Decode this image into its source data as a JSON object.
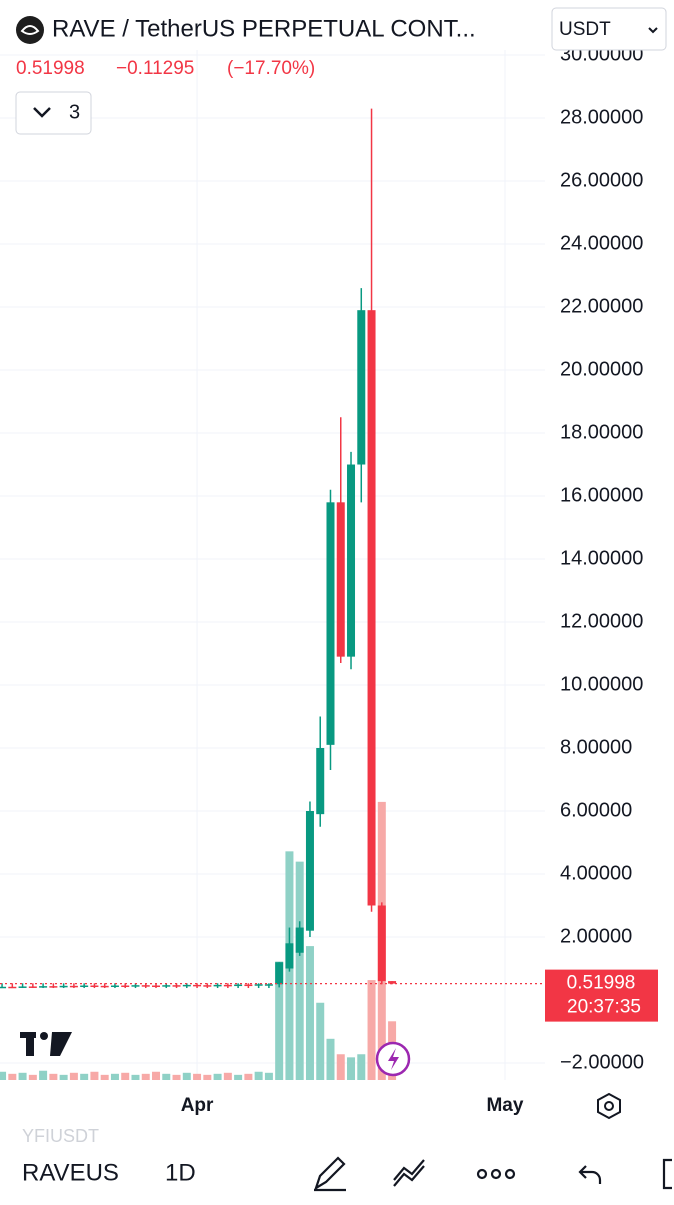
{
  "header": {
    "title": "RAVE / TetherUS PERPETUAL CONT...",
    "currency": "USDT",
    "price_change": "−0.11295",
    "price_change_pct": "(−17.70%)",
    "indicator_count": "3"
  },
  "chart_data": {
    "type": "candlestick",
    "x": [
      -19,
      -18,
      -17,
      -16,
      -15,
      -14,
      -13,
      -12,
      -11,
      -10,
      -9,
      -8,
      -7,
      -6,
      -5,
      -4,
      -3,
      -2,
      -1,
      0,
      1,
      2,
      3,
      4,
      5,
      6,
      7,
      8,
      9,
      10,
      11,
      12,
      13,
      14,
      15,
      16,
      17,
      18,
      19
    ],
    "open": [
      0.4,
      0.42,
      0.41,
      0.43,
      0.42,
      0.44,
      0.43,
      0.45,
      0.44,
      0.46,
      0.45,
      0.44,
      0.46,
      0.45,
      0.47,
      0.46,
      0.45,
      0.47,
      0.46,
      0.48,
      0.47,
      0.46,
      0.48,
      0.47,
      0.49,
      0.48,
      0.5,
      0.5,
      1.0,
      1.5,
      2.2,
      5.9,
      8.1,
      15.8,
      10.9,
      17.0,
      21.9,
      3.0,
      0.6
    ],
    "close": [
      0.42,
      0.41,
      0.43,
      0.42,
      0.44,
      0.43,
      0.45,
      0.44,
      0.46,
      0.45,
      0.44,
      0.46,
      0.45,
      0.47,
      0.46,
      0.45,
      0.47,
      0.46,
      0.48,
      0.47,
      0.46,
      0.48,
      0.47,
      0.49,
      0.48,
      0.5,
      0.5,
      1.2,
      1.8,
      2.3,
      6.0,
      8.0,
      15.8,
      10.9,
      17.0,
      21.9,
      3.0,
      0.6,
      0.52
    ],
    "high": [
      0.53,
      0.53,
      0.53,
      0.53,
      0.53,
      0.53,
      0.53,
      0.53,
      0.53,
      0.53,
      0.53,
      0.53,
      0.53,
      0.53,
      0.53,
      0.53,
      0.53,
      0.53,
      0.53,
      0.53,
      0.53,
      0.53,
      0.53,
      0.53,
      0.53,
      0.53,
      0.53,
      1.2,
      2.3,
      2.5,
      6.3,
      9.0,
      16.2,
      18.5,
      17.4,
      22.6,
      28.3,
      3.1,
      0.6
    ],
    "low": [
      0.38,
      0.38,
      0.38,
      0.38,
      0.38,
      0.38,
      0.38,
      0.38,
      0.38,
      0.38,
      0.38,
      0.38,
      0.38,
      0.38,
      0.38,
      0.38,
      0.38,
      0.38,
      0.38,
      0.38,
      0.38,
      0.38,
      0.38,
      0.38,
      0.38,
      0.38,
      0.38,
      0.4,
      0.9,
      1.4,
      2.0,
      5.5,
      7.3,
      10.7,
      10.5,
      15.8,
      2.8,
      0.5,
      0.5
    ],
    "volume": [
      8,
      6,
      7,
      5,
      9,
      6,
      5,
      7,
      6,
      8,
      5,
      6,
      7,
      5,
      6,
      8,
      6,
      5,
      7,
      6,
      5,
      6,
      7,
      5,
      6,
      8,
      7,
      115,
      222,
      212,
      130,
      75,
      40,
      25,
      22,
      25,
      97,
      270,
      57
    ],
    "volume_lim": [
      0,
      1000
    ],
    "up_color": "#089981",
    "down_color": "#f23645",
    "up_volume_color": "#8fd1c6",
    "down_volume_color": "#f7a9a7",
    "xlim": [
      -19.2,
      33.9
    ],
    "xticks": [
      {
        "value": 0,
        "label": "Apr"
      },
      {
        "value": 30,
        "label": "May"
      }
    ],
    "ylim": [
      -2.54,
      30.16
    ],
    "yticks": [
      {
        "value": -2,
        "label": "−2.00000"
      },
      {
        "value": 2,
        "label": "2.00000"
      },
      {
        "value": 4,
        "label": "4.00000"
      },
      {
        "value": 6,
        "label": "6.00000"
      },
      {
        "value": 8,
        "label": "8.00000"
      },
      {
        "value": 10,
        "label": "10.00000"
      },
      {
        "value": 12,
        "label": "12.00000"
      },
      {
        "value": 14,
        "label": "14.00000"
      },
      {
        "value": 16,
        "label": "16.00000"
      },
      {
        "value": 18,
        "label": "18.00000"
      },
      {
        "value": 20,
        "label": "20.00000"
      },
      {
        "value": 22,
        "label": "22.00000"
      },
      {
        "value": 24,
        "label": "24.00000"
      },
      {
        "value": 26,
        "label": "26.00000"
      },
      {
        "value": 28,
        "label": "28.00000"
      },
      {
        "value": 30,
        "label": "30.00000"
      }
    ],
    "grid": true,
    "last_price": 0.51998,
    "countdown": "20:37:35"
  },
  "footer": {
    "compare_symbol": "YFIUSDT",
    "symbol": "RAVEUS",
    "interval": "1D"
  }
}
